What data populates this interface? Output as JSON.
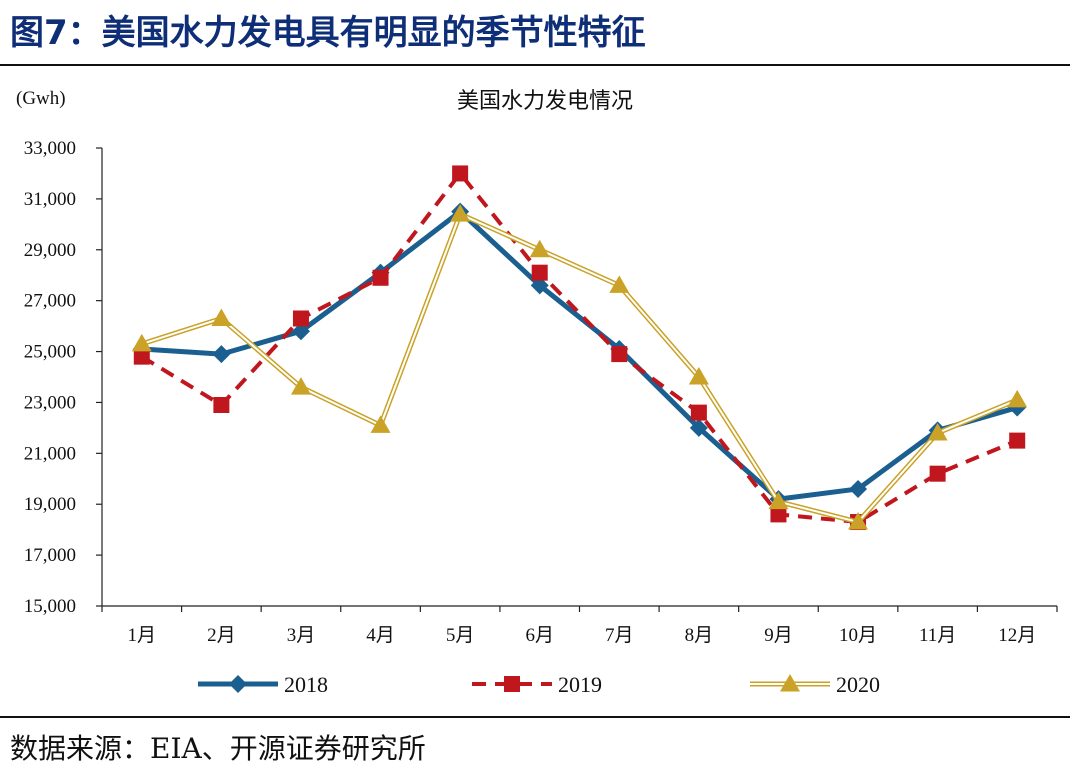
{
  "figure": {
    "title": "图7：美国水力发电具有明显的季节性特征",
    "source": "数据来源：EIA、开源证券研究所"
  },
  "colors": {
    "2018": "#1a5f8f",
    "2019": "#c0161d",
    "2020": "#c9a227",
    "title": "#0f2e78"
  },
  "chart_data": {
    "type": "line",
    "title": "美国水力发电情况",
    "unit_label": "(Gwh)",
    "categories": [
      "1月",
      "2月",
      "3月",
      "4月",
      "5月",
      "6月",
      "7月",
      "8月",
      "9月",
      "10月",
      "11月",
      "12月"
    ],
    "y_ticks": [
      "15,000",
      "17,000",
      "19,000",
      "21,000",
      "23,000",
      "25,000",
      "27,000",
      "29,000",
      "31,000",
      "33,000"
    ],
    "ylim": [
      15000,
      33000
    ],
    "legend_position": "bottom",
    "series": [
      {
        "name": "2018",
        "marker": "diamond",
        "values": [
          25100,
          24900,
          25800,
          28100,
          30500,
          27600,
          25100,
          22000,
          19200,
          19600,
          21900,
          22800
        ]
      },
      {
        "name": "2019",
        "marker": "square",
        "values": [
          24800,
          22900,
          26300,
          27900,
          32000,
          28100,
          24900,
          22600,
          18600,
          18300,
          20200,
          21500
        ]
      },
      {
        "name": "2020",
        "marker": "triangle",
        "values": [
          25300,
          26300,
          23600,
          22100,
          30400,
          29000,
          27600,
          24000,
          19100,
          18300,
          21800,
          23100
        ]
      }
    ]
  }
}
